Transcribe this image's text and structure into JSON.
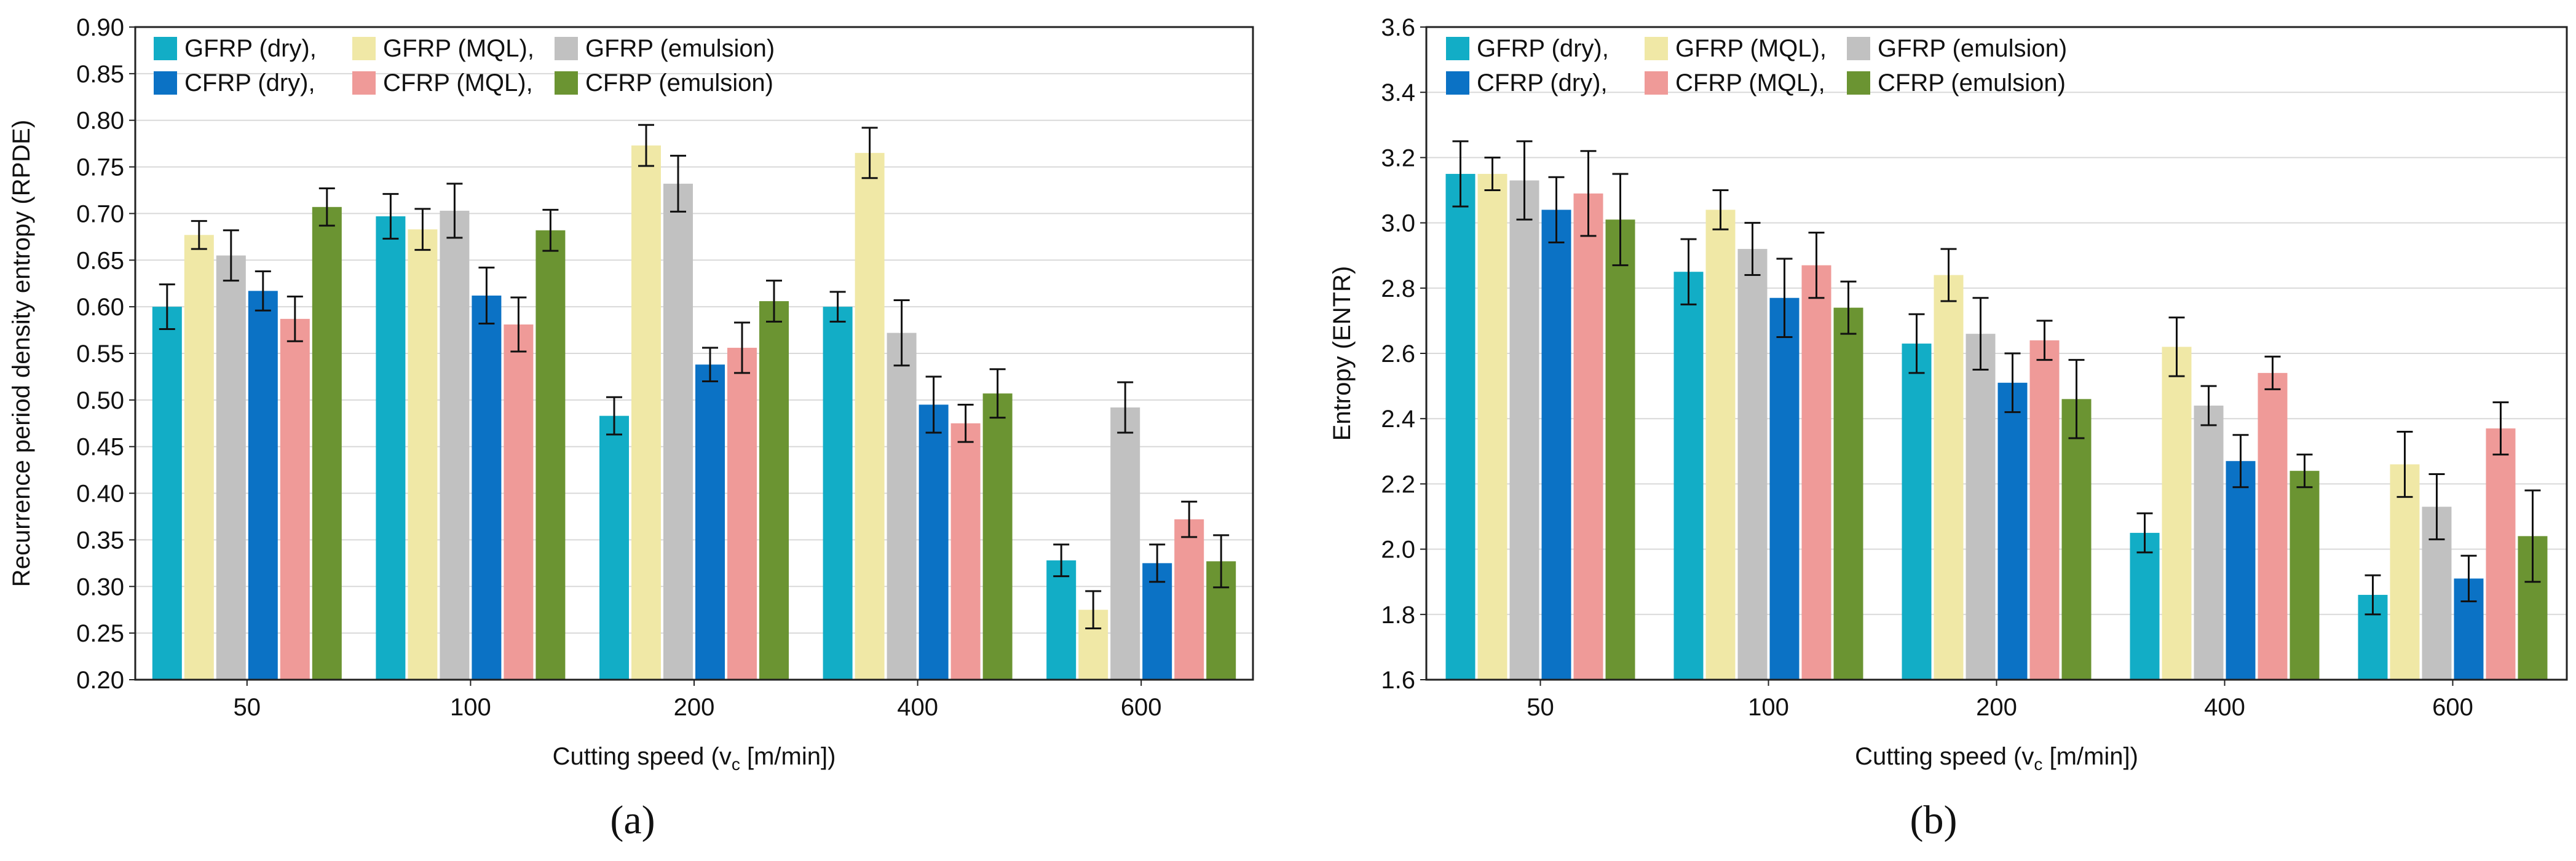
{
  "chart_data": [
    {
      "type": "bar",
      "panel_label": "(a)",
      "xlabel": "Cutting speed (v",
      "xlabel_sub": "c",
      "xlabel_tail": " [m/min])",
      "ylabel": "Recurrence period density entropy (RPDE)",
      "ylim": [
        0.2,
        0.9
      ],
      "yticks": [
        "0.20",
        "0.25",
        "0.30",
        "0.35",
        "0.40",
        "0.45",
        "0.50",
        "0.55",
        "0.60",
        "0.65",
        "0.70",
        "0.75",
        "0.80",
        "0.85",
        "0.90"
      ],
      "categories": [
        "50",
        "100",
        "200",
        "400",
        "600"
      ],
      "grid": true,
      "legend_position": "top-left",
      "series": [
        {
          "name": "GFRP (dry),",
          "color": "#12adc6",
          "values": [
            0.6,
            0.697,
            0.483,
            0.6,
            0.328
          ],
          "errors": [
            0.024,
            0.024,
            0.02,
            0.016,
            0.017
          ]
        },
        {
          "name": "GFRP (MQL),",
          "color": "#f0e8a6",
          "values": [
            0.677,
            0.683,
            0.773,
            0.765,
            0.275
          ],
          "errors": [
            0.015,
            0.022,
            0.022,
            0.027,
            0.02
          ]
        },
        {
          "name": "GFRP (emulsion)",
          "color": "#c1c1c1",
          "values": [
            0.655,
            0.703,
            0.732,
            0.572,
            0.492
          ],
          "errors": [
            0.027,
            0.029,
            0.03,
            0.035,
            0.027
          ]
        },
        {
          "name": "CFRP (dry),",
          "color": "#0b72c5",
          "values": [
            0.617,
            0.612,
            0.538,
            0.495,
            0.325
          ],
          "errors": [
            0.021,
            0.03,
            0.018,
            0.03,
            0.02
          ]
        },
        {
          "name": "CFRP (MQL),",
          "color": "#ef9a98",
          "values": [
            0.587,
            0.581,
            0.556,
            0.475,
            0.372
          ],
          "errors": [
            0.024,
            0.029,
            0.027,
            0.02,
            0.019
          ]
        },
        {
          "name": "CFRP (emulsion)",
          "color": "#6b9432",
          "values": [
            0.707,
            0.682,
            0.606,
            0.507,
            0.327
          ],
          "errors": [
            0.02,
            0.022,
            0.022,
            0.026,
            0.028
          ]
        }
      ]
    },
    {
      "type": "bar",
      "panel_label": "(b)",
      "xlabel": "Cutting speed (v",
      "xlabel_sub": "c",
      "xlabel_tail": " [m/min])",
      "ylabel": "Entropy (ENTR)",
      "ylim": [
        1.6,
        3.6
      ],
      "yticks": [
        "1.6",
        "1.8",
        "2.0",
        "2.2",
        "2.4",
        "2.6",
        "2.8",
        "3.0",
        "3.2",
        "3.4",
        "3.6"
      ],
      "categories": [
        "50",
        "100",
        "200",
        "400",
        "600"
      ],
      "grid": true,
      "legend_position": "top-left",
      "series": [
        {
          "name": "GFRP (dry),",
          "color": "#12adc6",
          "values": [
            3.15,
            2.85,
            2.63,
            2.05,
            1.86
          ],
          "errors": [
            0.1,
            0.1,
            0.09,
            0.06,
            0.06
          ]
        },
        {
          "name": "GFRP (MQL),",
          "color": "#f0e8a6",
          "values": [
            3.15,
            3.04,
            2.84,
            2.62,
            2.26
          ],
          "errors": [
            0.05,
            0.06,
            0.08,
            0.09,
            0.1
          ]
        },
        {
          "name": "GFRP (emulsion)",
          "color": "#c1c1c1",
          "values": [
            3.13,
            2.92,
            2.66,
            2.44,
            2.13
          ],
          "errors": [
            0.12,
            0.08,
            0.11,
            0.06,
            0.1
          ]
        },
        {
          "name": "CFRP (dry),",
          "color": "#0b72c5",
          "values": [
            3.04,
            2.77,
            2.51,
            2.27,
            1.91
          ],
          "errors": [
            0.1,
            0.12,
            0.09,
            0.08,
            0.07
          ]
        },
        {
          "name": "CFRP (MQL),",
          "color": "#ef9a98",
          "values": [
            3.09,
            2.87,
            2.64,
            2.54,
            2.37
          ],
          "errors": [
            0.13,
            0.1,
            0.06,
            0.05,
            0.08
          ]
        },
        {
          "name": "CFRP (emulsion)",
          "color": "#6b9432",
          "values": [
            3.01,
            2.74,
            2.46,
            2.24,
            2.04
          ],
          "errors": [
            0.14,
            0.08,
            0.12,
            0.05,
            0.14
          ]
        }
      ]
    }
  ]
}
